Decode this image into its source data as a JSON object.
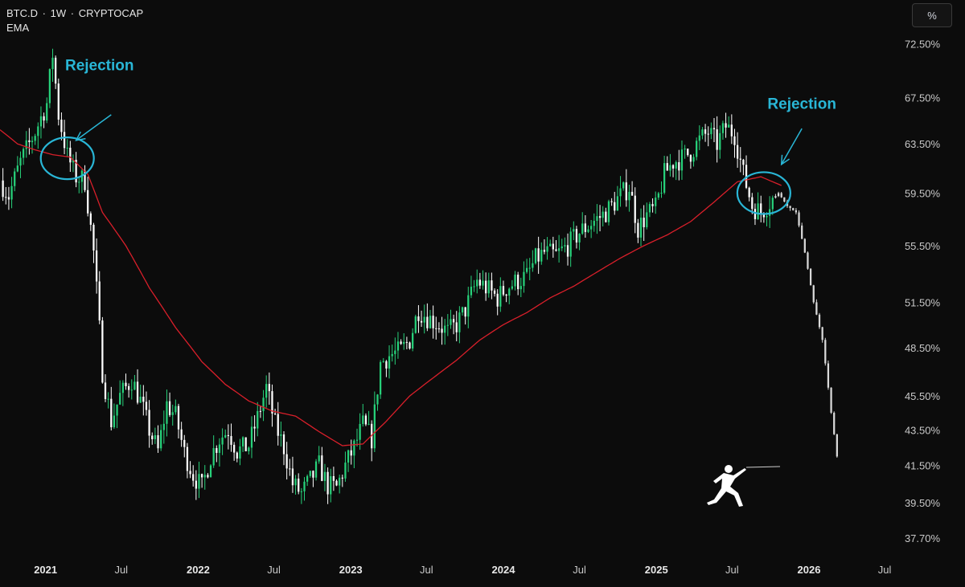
{
  "header": {
    "symbol": "BTC.D",
    "interval": "1W",
    "exchange": "CRYPTOCAP",
    "separator": "·",
    "indicator": "EMA"
  },
  "scale_button": {
    "label": "%"
  },
  "chart_data": {
    "type": "candlestick",
    "y_scale": "log",
    "ylim": [
      36.6,
      76.0
    ],
    "y_ticks": [
      {
        "value": 72.5,
        "label": "72.50%"
      },
      {
        "value": 67.5,
        "label": "67.50%"
      },
      {
        "value": 63.5,
        "label": "63.50%"
      },
      {
        "value": 59.5,
        "label": "59.50%"
      },
      {
        "value": 55.5,
        "label": "55.50%"
      },
      {
        "value": 51.5,
        "label": "51.50%"
      },
      {
        "value": 48.5,
        "label": "48.50%"
      },
      {
        "value": 45.5,
        "label": "45.50%"
      },
      {
        "value": 43.5,
        "label": "43.50%"
      },
      {
        "value": 41.5,
        "label": "41.50%"
      },
      {
        "value": 39.5,
        "label": "39.50%"
      },
      {
        "value": 37.7,
        "label": "37.70%"
      }
    ],
    "xlim": [
      "2020-09-14",
      "2026-07-20"
    ],
    "x_ticks": [
      {
        "date": "2021-01-01",
        "label": "2021",
        "year": true
      },
      {
        "date": "2021-07-01",
        "label": "Jul",
        "year": false
      },
      {
        "date": "2022-01-01",
        "label": "2022",
        "year": true
      },
      {
        "date": "2022-07-01",
        "label": "Jul",
        "year": false
      },
      {
        "date": "2023-01-01",
        "label": "2023",
        "year": true
      },
      {
        "date": "2023-07-01",
        "label": "Jul",
        "year": false
      },
      {
        "date": "2024-01-01",
        "label": "2024",
        "year": true
      },
      {
        "date": "2024-07-01",
        "label": "Jul",
        "year": false
      },
      {
        "date": "2025-01-01",
        "label": "2025",
        "year": true
      },
      {
        "date": "2025-07-01",
        "label": "Jul",
        "year": false
      },
      {
        "date": "2026-01-01",
        "label": "2026",
        "year": true
      },
      {
        "date": "2026-07-01",
        "label": "Jul",
        "year": false
      }
    ],
    "price_path": [
      [
        "2020-09-14",
        60.5
      ],
      [
        "2020-10-05",
        59.3
      ],
      [
        "2020-11-02",
        62.0
      ],
      [
        "2020-12-07",
        64.5
      ],
      [
        "2021-01-04",
        67.0
      ],
      [
        "2021-01-18",
        71.5
      ],
      [
        "2021-02-01",
        66.0
      ],
      [
        "2021-02-22",
        62.5
      ],
      [
        "2021-03-15",
        60.8
      ],
      [
        "2021-04-05",
        60.5
      ],
      [
        "2021-04-26",
        55.0
      ],
      [
        "2021-05-17",
        47.0
      ],
      [
        "2021-06-07",
        44.0
      ],
      [
        "2021-06-28",
        45.5
      ],
      [
        "2021-07-26",
        46.5
      ],
      [
        "2021-08-16",
        45.2
      ],
      [
        "2021-09-06",
        43.5
      ],
      [
        "2021-09-27",
        42.3
      ],
      [
        "2021-10-18",
        45.0
      ],
      [
        "2021-11-08",
        44.3
      ],
      [
        "2021-11-29",
        42.2
      ],
      [
        "2021-12-20",
        41.0
      ],
      [
        "2022-01-10",
        40.3
      ],
      [
        "2022-01-31",
        42.0
      ],
      [
        "2022-02-21",
        43.0
      ],
      [
        "2022-03-14",
        43.5
      ],
      [
        "2022-04-04",
        42.3
      ],
      [
        "2022-05-02",
        42.6
      ],
      [
        "2022-05-23",
        44.2
      ],
      [
        "2022-06-13",
        46.0
      ],
      [
        "2022-07-04",
        43.8
      ],
      [
        "2022-07-25",
        42.5
      ],
      [
        "2022-08-15",
        40.5
      ],
      [
        "2022-09-05",
        40.0
      ],
      [
        "2022-09-26",
        40.7
      ],
      [
        "2022-10-17",
        41.5
      ],
      [
        "2022-11-07",
        40.4
      ],
      [
        "2022-11-28",
        40.3
      ],
      [
        "2022-12-19",
        41.5
      ],
      [
        "2023-01-09",
        42.5
      ],
      [
        "2023-01-30",
        43.8
      ],
      [
        "2023-02-20",
        43.0
      ],
      [
        "2023-03-13",
        47.5
      ],
      [
        "2023-04-03",
        48.0
      ],
      [
        "2023-05-01",
        48.3
      ],
      [
        "2023-05-22",
        49.0
      ],
      [
        "2023-06-12",
        51.0
      ],
      [
        "2023-07-03",
        50.5
      ],
      [
        "2023-07-31",
        50.0
      ],
      [
        "2023-08-21",
        49.5
      ],
      [
        "2023-09-11",
        50.0
      ],
      [
        "2023-10-02",
        51.0
      ],
      [
        "2023-10-30",
        53.0
      ],
      [
        "2023-11-20",
        52.5
      ],
      [
        "2023-12-18",
        51.8
      ],
      [
        "2024-01-08",
        52.5
      ],
      [
        "2024-02-05",
        53.0
      ],
      [
        "2024-02-26",
        53.3
      ],
      [
        "2024-03-18",
        54.5
      ],
      [
        "2024-04-08",
        55.0
      ],
      [
        "2024-05-06",
        54.8
      ],
      [
        "2024-06-03",
        55.5
      ],
      [
        "2024-07-01",
        56.5
      ],
      [
        "2024-07-29",
        57.2
      ],
      [
        "2024-08-26",
        57.8
      ],
      [
        "2024-09-16",
        58.5
      ],
      [
        "2024-10-07",
        59.3
      ],
      [
        "2024-10-28",
        60.0
      ],
      [
        "2024-11-18",
        56.8
      ],
      [
        "2024-12-09",
        57.8
      ],
      [
        "2024-12-30",
        58.3
      ],
      [
        "2025-01-20",
        61.0
      ],
      [
        "2025-02-10",
        62.0
      ],
      [
        "2025-03-03",
        62.3
      ],
      [
        "2025-03-24",
        62.8
      ],
      [
        "2025-04-14",
        63.8
      ],
      [
        "2025-05-05",
        64.5
      ],
      [
        "2025-05-26",
        63.5
      ],
      [
        "2025-06-16",
        65.0
      ],
      [
        "2025-07-07",
        64.3
      ],
      [
        "2025-07-28",
        61.0
      ],
      [
        "2025-08-18",
        58.5
      ],
      [
        "2025-09-08",
        58.0
      ],
      [
        "2025-09-29",
        58.8
      ],
      [
        "2025-10-20",
        59.5
      ],
      [
        "2025-11-10",
        58.5
      ],
      [
        "2025-12-01",
        58.0
      ],
      [
        "2025-12-22",
        55.0
      ],
      [
        "2026-01-12",
        51.5
      ],
      [
        "2026-02-02",
        49.0
      ],
      [
        "2026-02-23",
        44.5
      ],
      [
        "2026-03-09",
        42.0
      ]
    ],
    "projection_start": "2025-10-13",
    "ema_path": [
      [
        "2020-09-14",
        64.7
      ],
      [
        "2020-10-26",
        63.5
      ],
      [
        "2020-12-07",
        63.0
      ],
      [
        "2021-01-18",
        62.6
      ],
      [
        "2021-03-01",
        62.4
      ],
      [
        "2021-04-12",
        61.0
      ],
      [
        "2021-05-17",
        58.0
      ],
      [
        "2021-07-12",
        55.5
      ],
      [
        "2021-09-06",
        52.5
      ],
      [
        "2021-11-08",
        49.8
      ],
      [
        "2022-01-10",
        47.6
      ],
      [
        "2022-03-07",
        46.2
      ],
      [
        "2022-05-02",
        45.2
      ],
      [
        "2022-06-27",
        44.6
      ],
      [
        "2022-08-22",
        44.3
      ],
      [
        "2022-10-17",
        43.4
      ],
      [
        "2022-12-12",
        42.6
      ],
      [
        "2023-01-30",
        42.7
      ],
      [
        "2023-03-27",
        44.0
      ],
      [
        "2023-05-22",
        45.5
      ],
      [
        "2023-07-17",
        46.6
      ],
      [
        "2023-09-11",
        47.7
      ],
      [
        "2023-11-06",
        49.0
      ],
      [
        "2024-01-01",
        50.0
      ],
      [
        "2024-02-26",
        50.8
      ],
      [
        "2024-04-22",
        51.8
      ],
      [
        "2024-06-17",
        52.6
      ],
      [
        "2024-08-12",
        53.6
      ],
      [
        "2024-10-07",
        54.6
      ],
      [
        "2024-12-02",
        55.5
      ],
      [
        "2025-01-27",
        56.3
      ],
      [
        "2025-03-24",
        57.3
      ],
      [
        "2025-05-19",
        58.8
      ],
      [
        "2025-07-14",
        60.4
      ],
      [
        "2025-09-08",
        60.8
      ],
      [
        "2025-10-27",
        60.1
      ]
    ],
    "colors": {
      "up": "#27d17a",
      "down": "#ffffff",
      "projection": "#d9d9d9",
      "ema": "#d91f2a",
      "annotation": "#29b6d6",
      "background": "#0c0c0c"
    },
    "annotations": [
      {
        "text": "Rejection",
        "date": "2021-05-10",
        "value": 70.0
      },
      {
        "text": "Rejection",
        "date": "2025-12-15",
        "value": 66.5
      }
    ],
    "circles": [
      {
        "date": "2021-02-22",
        "value": 62.3
      },
      {
        "date": "2025-09-15",
        "value": 59.5
      }
    ],
    "arrows": [
      {
        "from_date": "2021-06-07",
        "from_value": 66.0,
        "to_date": "2021-03-15",
        "to_value": 63.8
      },
      {
        "from_date": "2025-12-15",
        "from_value": 64.8,
        "to_date": "2025-10-27",
        "to_value": 61.8
      }
    ]
  }
}
